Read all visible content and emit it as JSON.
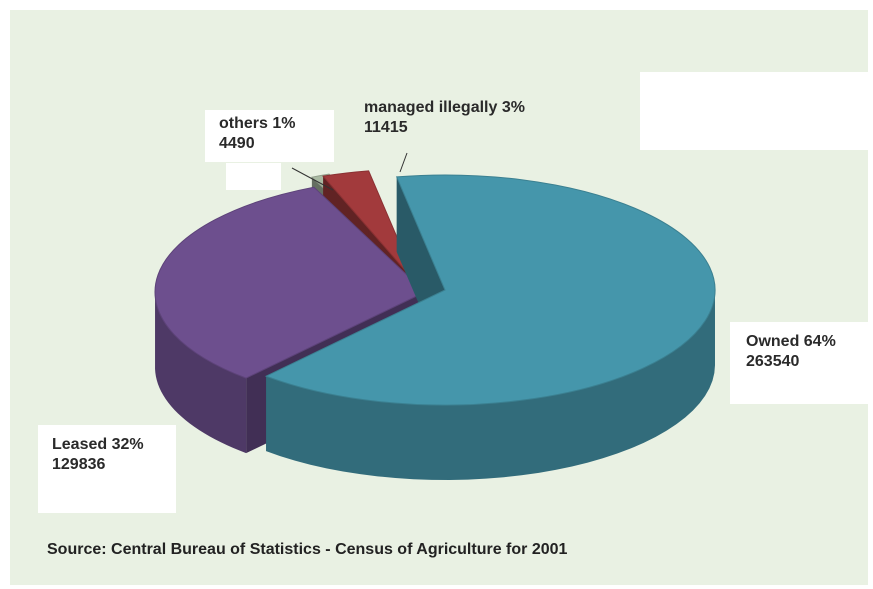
{
  "chart_data": {
    "type": "pie",
    "style": "3d-exploded",
    "slices": [
      {
        "name": "Owned",
        "percent": "64%",
        "value": 263540,
        "color": "#4596ab"
      },
      {
        "name": "Leased",
        "percent": "32%",
        "value": 129836,
        "color": "#6d4f8e"
      },
      {
        "name": "others",
        "percent": "1%",
        "value": 4490,
        "color": "#a9b9a2"
      },
      {
        "name": "managed illegally",
        "percent": "3%",
        "value": 11415,
        "color": "#a23a3c"
      }
    ],
    "labels": {
      "owned": {
        "line1": "Owned 64%",
        "line2": "263540"
      },
      "leased": {
        "line1": "Leased 32%",
        "line2": "129836"
      },
      "others": {
        "line1": "others 1%",
        "line2": "4490"
      },
      "illegal": {
        "line1": "managed illegally 3%",
        "line2": "11415"
      }
    },
    "source": "Source: Central Bureau of Statistics - Census of Agriculture for 2001"
  }
}
